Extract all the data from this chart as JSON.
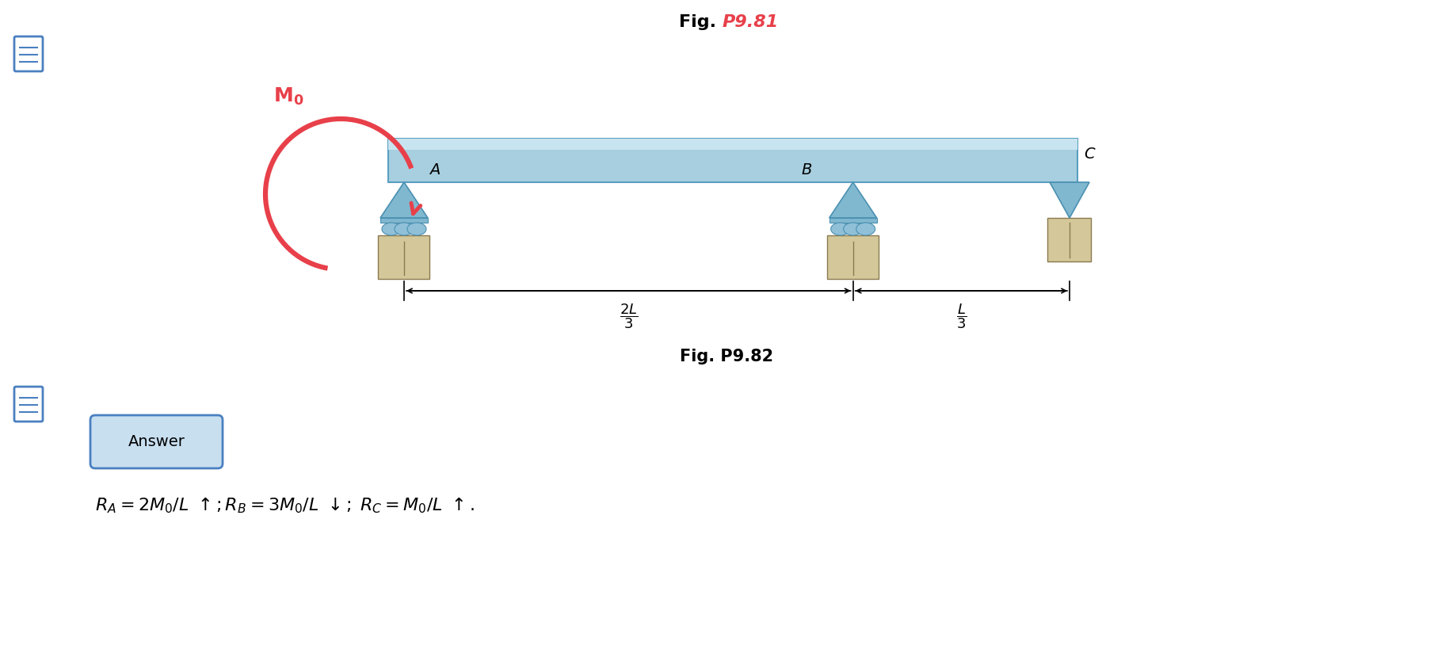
{
  "beam_color": "#a8cfe0",
  "beam_edge_color": "#5a9fc0",
  "beam_highlight_color": "#c8e4f0",
  "support_block_color": "#d4c89a",
  "support_block_edge": "#8a7a50",
  "triangle_color": "#80b8d0",
  "triangle_edge_color": "#4a90b0",
  "roller_color": "#90c0d8",
  "roller_edge_color": "#4a90b0",
  "roller_plate_color": "#80b8d0",
  "moment_color": "#e8404a",
  "title_color_black": "#000000",
  "title_color_red": "#e8404a",
  "label_color": "#000000",
  "answer_box_color": "#c8dff0",
  "answer_box_edge": "#4a80c0",
  "icon_color": "#4a80c0",
  "background": "#ffffff",
  "fig1_label": "Fig. ",
  "fig1_red": "P9.81",
  "fig2_label": "Fig. P9.82",
  "label_A": "A",
  "label_B": "B",
  "label_C": "C",
  "label_M0": "$\\mathbf{M_0}$",
  "answer_label": "Answer",
  "eq_line": "$R_A = 2M_0/L\\uparrow; R_B = 3M_0/L\\downarrow;\\; R_C = M_0/L\\uparrow.$"
}
